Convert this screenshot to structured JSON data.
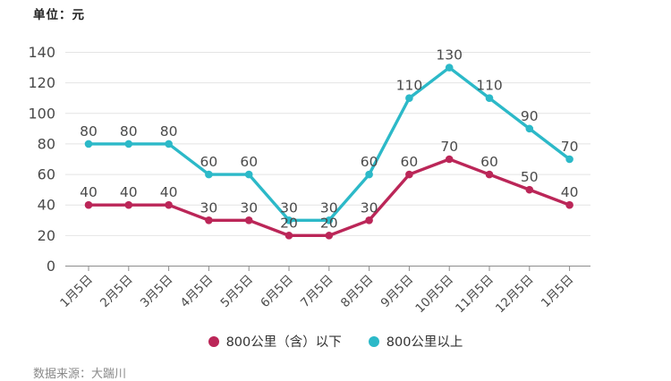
{
  "unit_label": "单位：元",
  "chart_data": {
    "type": "line",
    "title": "",
    "xlabel": "",
    "ylabel": "元",
    "categories": [
      "1月5日",
      "2月5日",
      "3月5日",
      "4月5日",
      "5月5日",
      "6月5日",
      "7月5日",
      "8月5日",
      "9月5日",
      "10月5日",
      "11月5日",
      "12月5日",
      "1月5日"
    ],
    "series": [
      {
        "name": "800公里（含）以下",
        "color": "#bb2658",
        "values": [
          40,
          40,
          40,
          30,
          30,
          20,
          20,
          30,
          60,
          70,
          60,
          50,
          40
        ]
      },
      {
        "name": "800公里以上",
        "color": "#2cb9c8",
        "values": [
          80,
          80,
          80,
          60,
          60,
          30,
          30,
          60,
          110,
          130,
          110,
          90,
          70
        ]
      }
    ],
    "ylim": [
      0,
      140
    ],
    "yticks": [
      0,
      20,
      40,
      60,
      80,
      100,
      120,
      140
    ],
    "grid": true,
    "legend_position": "bottom",
    "value_labels": true,
    "label_color": "#4a4a4a",
    "grid_color": "#e4e4e4",
    "axis_color": "#8d8d8d"
  },
  "footer": {
    "source": "数据来源：大踹川"
  }
}
